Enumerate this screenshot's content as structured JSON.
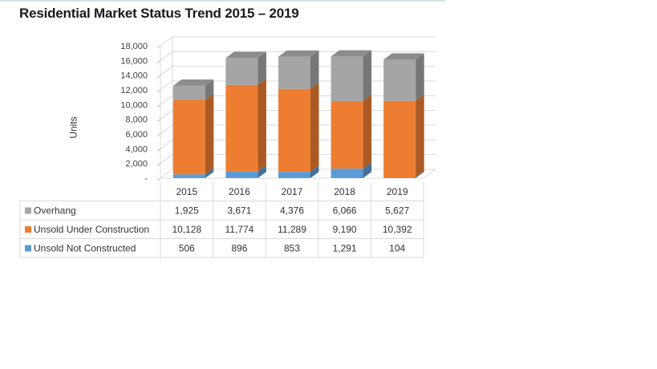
{
  "title": "Residential Market Status Trend 2015 – 2019",
  "chart_data": {
    "type": "bar",
    "stacked": true,
    "three_d": true,
    "title": "Residential Market Status Trend 2015 – 2019",
    "ylabel": "Units",
    "ylim": [
      0,
      18000
    ],
    "yticks": [
      0,
      2000,
      4000,
      6000,
      8000,
      10000,
      12000,
      14000,
      16000,
      18000
    ],
    "ytick_labels": [
      "-",
      "2,000",
      "4,000",
      "6,000",
      "8,000",
      "10,000",
      "12,000",
      "14,000",
      "16,000",
      "18,000"
    ],
    "categories": [
      "2015",
      "2016",
      "2017",
      "2018",
      "2019"
    ],
    "series": [
      {
        "name": "Unsold Not Constructed",
        "color": "#5b9bd5",
        "values": [
          506,
          896,
          853,
          1291,
          104
        ],
        "labels": [
          "506",
          "896",
          "853",
          "1,291",
          "104"
        ]
      },
      {
        "name": "Unsold Under Construction",
        "color": "#ed7d31",
        "values": [
          10128,
          11774,
          11289,
          9190,
          10392
        ],
        "labels": [
          "10,128",
          "11,774",
          "11,289",
          "9,190",
          "10,392"
        ]
      },
      {
        "name": "Overhang",
        "color": "#a5a5a5",
        "values": [
          1925,
          3671,
          4376,
          6066,
          5627
        ],
        "labels": [
          "1,925",
          "3,671",
          "4,376",
          "6,066",
          "5,627"
        ]
      }
    ],
    "table_row_order": [
      "Overhang",
      "Unsold Under Construction",
      "Unsold Not Constructed"
    ],
    "grid": true,
    "legend": "data-table"
  }
}
